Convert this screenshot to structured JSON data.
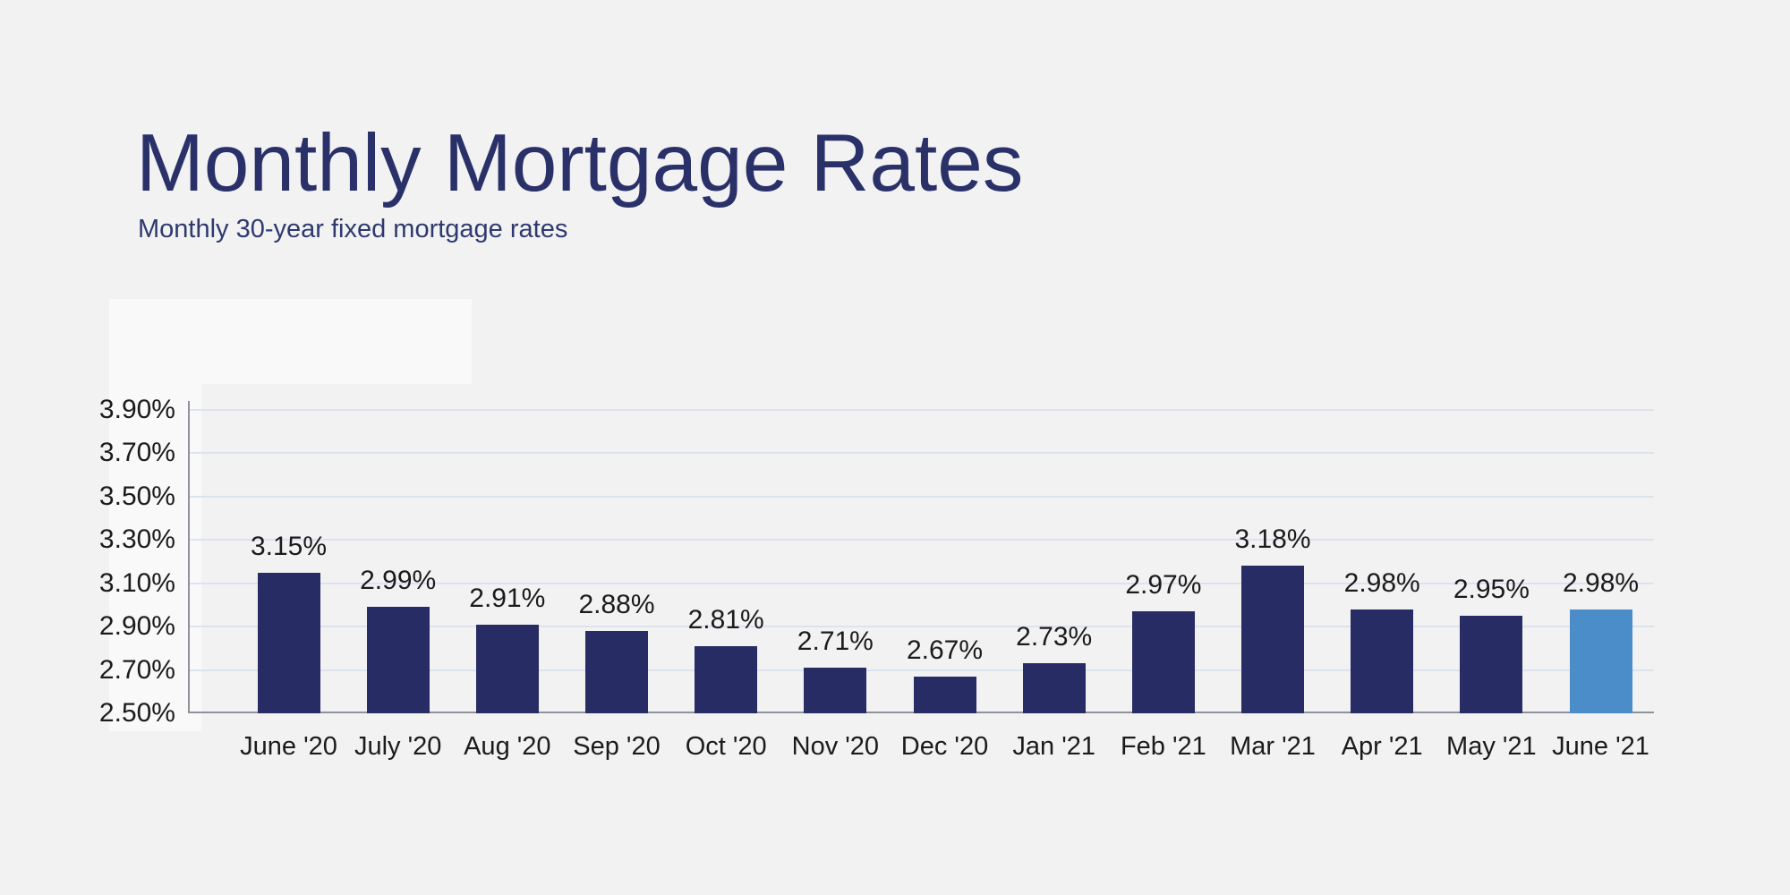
{
  "page": {
    "background_color": "#f2f2f3",
    "title": "Monthly Mortgage Rates",
    "subtitle": "Monthly 30-year fixed mortgage rates",
    "title_color": "#2a3169",
    "subtitle_color": "#2e3a6e"
  },
  "chart_data": {
    "type": "bar",
    "title": "Monthly Mortgage Rates",
    "subtitle": "Monthly 30-year fixed mortgage rates",
    "categories": [
      "June '20",
      "July '20",
      "Aug '20",
      "Sep '20",
      "Oct '20",
      "Nov '20",
      "Dec '20",
      "Jan '21",
      "Feb '21",
      "Mar '21",
      "Apr '21",
      "May '21",
      "June '21"
    ],
    "values": [
      3.15,
      2.99,
      2.91,
      2.88,
      2.81,
      2.71,
      2.67,
      2.73,
      2.97,
      3.18,
      2.98,
      2.95,
      2.98
    ],
    "data_labels": [
      "3.15%",
      "2.99%",
      "2.91%",
      "2.88%",
      "2.81%",
      "2.71%",
      "2.67%",
      "2.73%",
      "2.97%",
      "3.18%",
      "2.98%",
      "2.95%",
      "2.98%"
    ],
    "xlabel": "",
    "ylabel": "",
    "y_ticks": [
      {
        "label": "3.90%",
        "value": 3.9
      },
      {
        "label": "3.70%",
        "value": 3.7
      },
      {
        "label": "3.50%",
        "value": 3.5
      },
      {
        "label": "3.30%",
        "value": 3.3
      },
      {
        "label": "3.10%",
        "value": 3.1
      },
      {
        "label": "2.90%",
        "value": 2.9
      },
      {
        "label": "2.70%",
        "value": 2.7
      },
      {
        "label": "2.50%",
        "value": 2.5
      }
    ],
    "ylim": [
      2.5,
      3.9
    ],
    "grid": true,
    "legend": "none",
    "bar_color": "#272c64",
    "highlight_bar_color": "#4b8dc9",
    "highlighted_index": 12,
    "gridline_color": "#dde3ee",
    "axis_color": "#8f9399",
    "tick_label_color": "#1b1b1b",
    "data_label_color": "#1b1b1b"
  }
}
